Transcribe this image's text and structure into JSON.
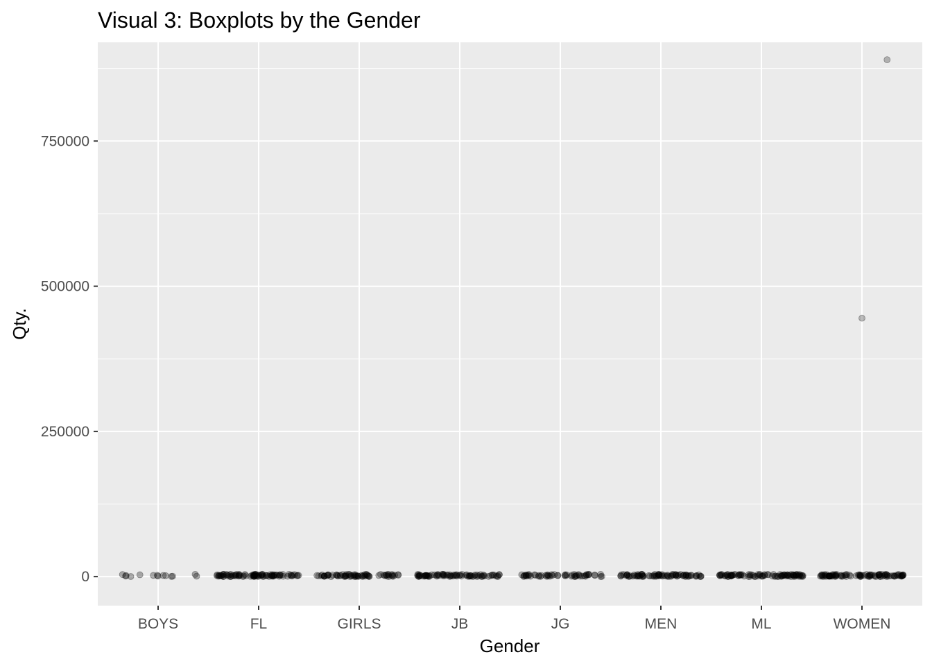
{
  "chart_data": {
    "type": "scatter",
    "title": "Visual 3: Boxplots by the Gender",
    "xlabel": "Gender",
    "ylabel": "Qty.",
    "categories": [
      "BOYS",
      "FL",
      "GIRLS",
      "JB",
      "JG",
      "MEN",
      "ML",
      "WOMEN"
    ],
    "ylim": [
      -50000,
      920000
    ],
    "yticks": [
      0,
      250000,
      500000,
      750000
    ],
    "ytick_labels": [
      "0",
      "250000",
      "500000",
      "750000"
    ],
    "grid": true,
    "legend": "none",
    "points_description": "jittered points near zero for every category",
    "outliers": [
      {
        "category": "WOMEN",
        "y": 445000,
        "jitter": 0.0
      },
      {
        "category": "WOMEN",
        "y": 890000,
        "jitter": 0.25
      }
    ],
    "colors": {
      "panel_background": "#ebebeb",
      "grid": "#ffffff",
      "point": "#000000"
    }
  }
}
